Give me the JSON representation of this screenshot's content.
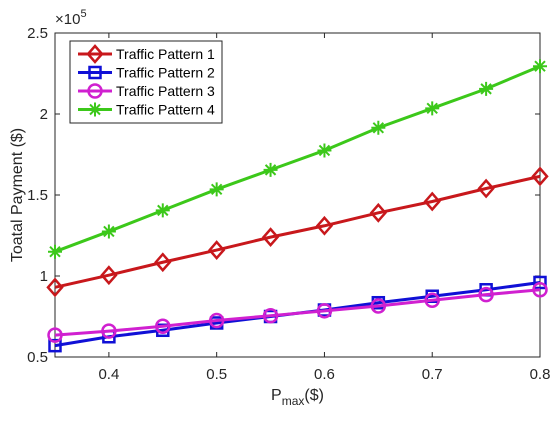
{
  "chart_data": {
    "type": "line",
    "ylabel": "Toatal Payment ($)",
    "xlabel_main": "P",
    "xlabel_sub": "max",
    "xlabel_unit": "($)",
    "y_multiplier_base": "×10",
    "y_multiplier_exp": "5",
    "xlim": [
      0.35,
      0.8
    ],
    "ylim": [
      0.5,
      2.5
    ],
    "xticks": [
      0.4,
      0.5,
      0.6,
      0.7,
      0.8
    ],
    "xtick_labels": [
      "0.4",
      "0.5",
      "0.6",
      "0.7",
      "0.8"
    ],
    "yticks": [
      0.5,
      1,
      1.5,
      2,
      2.5
    ],
    "ytick_labels": [
      "0.5",
      "1",
      "1.5",
      "2",
      "2.5"
    ],
    "grid": false,
    "legend_position": "top-left",
    "x": [
      0.35,
      0.4,
      0.45,
      0.5,
      0.55,
      0.6,
      0.65,
      0.7,
      0.75,
      0.8
    ],
    "series": [
      {
        "name": "Traffic Pattern 1",
        "color": "#c8181c",
        "marker": "diamond",
        "values": [
          0.93,
          1.005,
          1.085,
          1.16,
          1.24,
          1.31,
          1.39,
          1.46,
          1.54,
          1.615
        ]
      },
      {
        "name": "Traffic Pattern 2",
        "color": "#1010d6",
        "marker": "square",
        "values": [
          0.57,
          0.625,
          0.665,
          0.71,
          0.75,
          0.79,
          0.835,
          0.875,
          0.915,
          0.96
        ]
      },
      {
        "name": "Traffic Pattern 3",
        "color": "#d020d0",
        "marker": "circle",
        "values": [
          0.635,
          0.66,
          0.69,
          0.725,
          0.755,
          0.785,
          0.815,
          0.85,
          0.885,
          0.915
        ]
      },
      {
        "name": "Traffic Pattern 4",
        "color": "#3cc81a",
        "marker": "asterisk",
        "values": [
          1.15,
          1.275,
          1.405,
          1.535,
          1.655,
          1.775,
          1.915,
          2.035,
          2.155,
          2.295
        ]
      }
    ]
  }
}
